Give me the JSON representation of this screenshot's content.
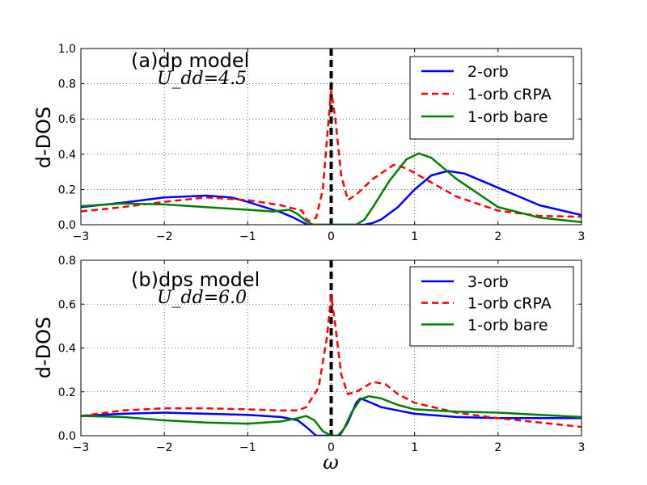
{
  "chart_data": [
    {
      "type": "line",
      "title": "(a)dp model",
      "annotation": "U_dd=4.5",
      "ylabel": "d-DOS",
      "xlabel": "",
      "xlim": [
        -3,
        3
      ],
      "ylim": [
        0,
        1.0
      ],
      "xticks": [
        "−3",
        "−2",
        "−1",
        "0",
        "1",
        "2",
        "3"
      ],
      "yticks": [
        "0.0",
        "0.2",
        "0.4",
        "0.6",
        "0.8",
        "1.0"
      ],
      "grid": true,
      "legend_position": "top-right",
      "series": [
        {
          "name": "2-orb",
          "color": "#0000ff",
          "style": "solid",
          "points": [
            [
              -3,
              0.1
            ],
            [
              -2.5,
              0.125
            ],
            [
              -2,
              0.155
            ],
            [
              -1.5,
              0.165
            ],
            [
              -1.2,
              0.155
            ],
            [
              -1,
              0.13
            ],
            [
              -0.8,
              0.1
            ],
            [
              -0.6,
              0.07
            ],
            [
              -0.45,
              0.04
            ],
            [
              -0.35,
              0.015
            ],
            [
              -0.28,
              0.0
            ],
            [
              0,
              0.0
            ],
            [
              0.4,
              0.0
            ],
            [
              0.5,
              0.01
            ],
            [
              0.6,
              0.03
            ],
            [
              0.8,
              0.1
            ],
            [
              1.0,
              0.2
            ],
            [
              1.2,
              0.28
            ],
            [
              1.4,
              0.305
            ],
            [
              1.6,
              0.29
            ],
            [
              2.0,
              0.21
            ],
            [
              2.5,
              0.11
            ],
            [
              3,
              0.055
            ]
          ]
        },
        {
          "name": "1-orb cRPA",
          "color": "#ff0000",
          "style": "dashed",
          "points": [
            [
              -3,
              0.075
            ],
            [
              -2.5,
              0.1
            ],
            [
              -2,
              0.13
            ],
            [
              -1.5,
              0.155
            ],
            [
              -1,
              0.14
            ],
            [
              -0.6,
              0.11
            ],
            [
              -0.35,
              0.08
            ],
            [
              -0.28,
              0.02
            ],
            [
              -0.18,
              0.04
            ],
            [
              -0.1,
              0.2
            ],
            [
              -0.04,
              0.55
            ],
            [
              0,
              0.76
            ],
            [
              0.05,
              0.6
            ],
            [
              0.12,
              0.28
            ],
            [
              0.2,
              0.14
            ],
            [
              0.3,
              0.17
            ],
            [
              0.5,
              0.26
            ],
            [
              0.75,
              0.34
            ],
            [
              0.9,
              0.32
            ],
            [
              1.2,
              0.24
            ],
            [
              1.5,
              0.16
            ],
            [
              2,
              0.08
            ],
            [
              2.5,
              0.05
            ],
            [
              3,
              0.045
            ]
          ]
        },
        {
          "name": "1-orb bare",
          "color": "#008000",
          "style": "solid",
          "points": [
            [
              -3,
              0.105
            ],
            [
              -2.5,
              0.12
            ],
            [
              -2,
              0.115
            ],
            [
              -1.5,
              0.1
            ],
            [
              -1,
              0.085
            ],
            [
              -0.7,
              0.075
            ],
            [
              -0.5,
              0.085
            ],
            [
              -0.4,
              0.06
            ],
            [
              -0.3,
              0.02
            ],
            [
              -0.22,
              0.0
            ],
            [
              0.3,
              0.0
            ],
            [
              0.4,
              0.03
            ],
            [
              0.5,
              0.1
            ],
            [
              0.7,
              0.25
            ],
            [
              0.9,
              0.37
            ],
            [
              1.05,
              0.405
            ],
            [
              1.2,
              0.38
            ],
            [
              1.5,
              0.26
            ],
            [
              2,
              0.1
            ],
            [
              2.5,
              0.04
            ],
            [
              3,
              0.015
            ]
          ]
        }
      ]
    },
    {
      "type": "line",
      "title": "(b)dps model",
      "annotation": "U_dd=6.0",
      "ylabel": "d-DOS",
      "xlabel": "ω",
      "xlim": [
        -3,
        3
      ],
      "ylim": [
        0,
        0.8
      ],
      "xticks": [
        "−3",
        "−2",
        "−1",
        "0",
        "1",
        "2",
        "3"
      ],
      "yticks": [
        "0.0",
        "0.2",
        "0.4",
        "0.6",
        "0.8"
      ],
      "grid": true,
      "legend_position": "top-right",
      "series": [
        {
          "name": "3-orb",
          "color": "#0000ff",
          "style": "solid",
          "points": [
            [
              -3,
              0.09
            ],
            [
              -2.5,
              0.1
            ],
            [
              -2,
              0.105
            ],
            [
              -1.5,
              0.1
            ],
            [
              -1,
              0.095
            ],
            [
              -0.6,
              0.085
            ],
            [
              -0.4,
              0.07
            ],
            [
              -0.3,
              0.04
            ],
            [
              -0.18,
              0.0
            ],
            [
              0.1,
              0.0
            ],
            [
              0.2,
              0.06
            ],
            [
              0.3,
              0.15
            ],
            [
              0.35,
              0.17
            ],
            [
              0.45,
              0.155
            ],
            [
              0.6,
              0.13
            ],
            [
              0.8,
              0.115
            ],
            [
              1,
              0.1
            ],
            [
              1.5,
              0.085
            ],
            [
              2,
              0.08
            ],
            [
              2.5,
              0.08
            ],
            [
              3,
              0.08
            ]
          ]
        },
        {
          "name": "1-orb cRPA",
          "color": "#ff0000",
          "style": "dashed",
          "points": [
            [
              -3,
              0.09
            ],
            [
              -2.5,
              0.115
            ],
            [
              -2,
              0.125
            ],
            [
              -1.5,
              0.125
            ],
            [
              -1,
              0.12
            ],
            [
              -0.6,
              0.115
            ],
            [
              -0.4,
              0.115
            ],
            [
              -0.3,
              0.13
            ],
            [
              -0.15,
              0.22
            ],
            [
              -0.05,
              0.45
            ],
            [
              0,
              0.64
            ],
            [
              0.05,
              0.5
            ],
            [
              0.12,
              0.28
            ],
            [
              0.2,
              0.19
            ],
            [
              0.3,
              0.2
            ],
            [
              0.5,
              0.245
            ],
            [
              0.65,
              0.235
            ],
            [
              0.8,
              0.19
            ],
            [
              1,
              0.15
            ],
            [
              1.5,
              0.105
            ],
            [
              2,
              0.08
            ],
            [
              2.5,
              0.06
            ],
            [
              3,
              0.04
            ]
          ]
        },
        {
          "name": "1-orb bare",
          "color": "#008000",
          "style": "solid",
          "points": [
            [
              -3,
              0.09
            ],
            [
              -2.5,
              0.085
            ],
            [
              -2,
              0.07
            ],
            [
              -1.5,
              0.06
            ],
            [
              -1,
              0.055
            ],
            [
              -0.6,
              0.065
            ],
            [
              -0.4,
              0.08
            ],
            [
              -0.3,
              0.09
            ],
            [
              -0.2,
              0.07
            ],
            [
              -0.1,
              0.02
            ],
            [
              0,
              0.0
            ],
            [
              0.08,
              0.0
            ],
            [
              0.15,
              0.03
            ],
            [
              0.25,
              0.11
            ],
            [
              0.35,
              0.165
            ],
            [
              0.45,
              0.18
            ],
            [
              0.6,
              0.17
            ],
            [
              0.8,
              0.14
            ],
            [
              1,
              0.12
            ],
            [
              1.5,
              0.11
            ],
            [
              2,
              0.105
            ],
            [
              2.5,
              0.095
            ],
            [
              3,
              0.085
            ]
          ]
        }
      ]
    }
  ]
}
